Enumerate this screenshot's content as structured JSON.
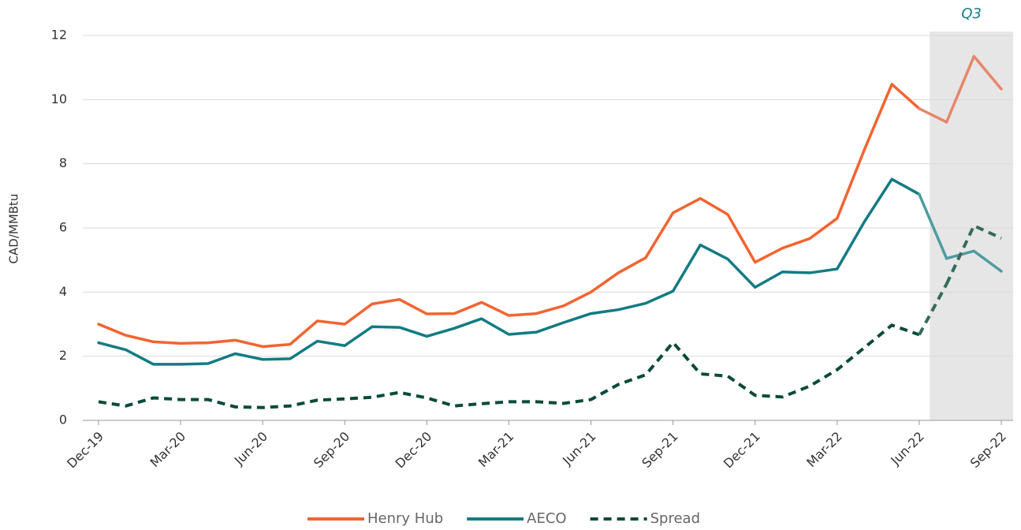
{
  "chart_data": {
    "type": "line",
    "y_label": "CAD/MMBtu",
    "categories": [
      "Dec-19",
      null,
      null,
      "Mar-20",
      null,
      null,
      "Jun-20",
      null,
      null,
      "Sep-20",
      null,
      null,
      "Dec-20",
      null,
      null,
      "Mar-21",
      null,
      null,
      "Jun-21",
      null,
      null,
      "Sep-21",
      null,
      null,
      "Dec-21",
      null,
      null,
      "Mar-22",
      null,
      null,
      "Jun-22",
      null,
      null,
      "Sep-22"
    ],
    "series": [
      {
        "name": "Henry Hub",
        "color": "#f26430",
        "highlight_color": "#e5876a",
        "dash": false,
        "values": [
          3.0,
          2.65,
          2.45,
          2.4,
          2.42,
          2.5,
          2.3,
          2.37,
          3.1,
          3.0,
          3.63,
          3.77,
          3.32,
          3.33,
          3.68,
          3.27,
          3.33,
          3.57,
          4.0,
          4.6,
          5.07,
          6.47,
          6.92,
          6.42,
          4.93,
          5.37,
          5.67,
          6.3,
          8.45,
          10.48,
          9.72,
          9.3,
          11.35,
          10.33
        ]
      },
      {
        "name": "AECO",
        "color": "#137b83",
        "highlight_color": "#4f9ba0",
        "dash": false,
        "values": [
          2.42,
          2.2,
          1.75,
          1.75,
          1.77,
          2.08,
          1.9,
          1.92,
          2.47,
          2.33,
          2.92,
          2.9,
          2.62,
          2.87,
          3.17,
          2.68,
          2.75,
          3.05,
          3.33,
          3.45,
          3.65,
          4.03,
          5.47,
          5.03,
          4.15,
          4.63,
          4.6,
          4.72,
          6.2,
          7.52,
          7.05,
          5.05,
          5.28,
          4.65
        ]
      },
      {
        "name": "Spread",
        "color": "#0b4a3c",
        "highlight_color": "#336b5c",
        "dash": true,
        "values": [
          0.58,
          0.45,
          0.7,
          0.65,
          0.65,
          0.42,
          0.4,
          0.45,
          0.63,
          0.67,
          0.72,
          0.87,
          0.7,
          0.45,
          0.52,
          0.58,
          0.58,
          0.53,
          0.65,
          1.12,
          1.42,
          2.43,
          1.45,
          1.38,
          0.78,
          0.73,
          1.07,
          1.58,
          2.27,
          2.97,
          2.67,
          4.25,
          6.07,
          5.68
        ]
      }
    ],
    "highlight": {
      "label": "Q3",
      "start": 31,
      "end": 33,
      "color": "#e6e6e6",
      "label_color": "#137b83"
    },
    "ylim": [
      0,
      12
    ],
    "yticks": [
      0,
      2,
      4,
      6,
      8,
      10,
      12
    ],
    "grid": true,
    "legend": "bottom"
  }
}
